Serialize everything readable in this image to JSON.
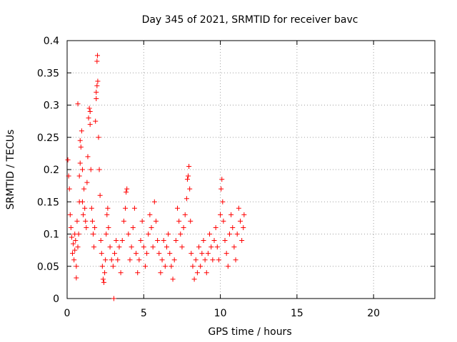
{
  "chart_data": {
    "type": "scatter",
    "title": "Day 345 of 2021, SRMTID for receiver bavc",
    "xlabel": "GPS time / hours",
    "ylabel": "SRMTID / TECUs",
    "xlim": [
      0,
      24
    ],
    "ylim": [
      0,
      0.4
    ],
    "xticks": [
      0,
      5,
      10,
      15,
      20
    ],
    "yticks": [
      0,
      0.05,
      0.1,
      0.15,
      0.2,
      0.25,
      0.3,
      0.35,
      0.4
    ],
    "xtick_labels": [
      "0",
      "5",
      "10",
      "15",
      "20"
    ],
    "ytick_labels": [
      "0",
      "0.05",
      "0.1",
      "0.15",
      "0.2",
      "0.25",
      "0.3",
      "0.35",
      "0.4"
    ],
    "grid": true,
    "marker": "+",
    "color": "#ff0000",
    "series": [
      {
        "name": "SRMTID",
        "points": [
          [
            0.05,
            0.215
          ],
          [
            0.1,
            0.19
          ],
          [
            0.15,
            0.17
          ],
          [
            0.2,
            0.13
          ],
          [
            0.25,
            0.11
          ],
          [
            0.3,
            0.095
          ],
          [
            0.35,
            0.07
          ],
          [
            0.4,
            0.085
          ],
          [
            0.45,
            0.06
          ],
          [
            0.5,
            0.075
          ],
          [
            0.5,
            0.1
          ],
          [
            0.55,
            0.09
          ],
          [
            0.6,
            0.05
          ],
          [
            0.6,
            0.032
          ],
          [
            0.65,
            0.12
          ],
          [
            0.7,
            0.08
          ],
          [
            0.75,
            0.1
          ],
          [
            0.8,
            0.15
          ],
          [
            0.8,
            0.19
          ],
          [
            0.85,
            0.21
          ],
          [
            0.7,
            0.302
          ],
          [
            0.85,
            0.245
          ],
          [
            0.9,
            0.235
          ],
          [
            0.95,
            0.26
          ],
          [
            1.0,
            0.2
          ],
          [
            1.0,
            0.15
          ],
          [
            1.05,
            0.13
          ],
          [
            1.1,
            0.17
          ],
          [
            1.15,
            0.14
          ],
          [
            1.2,
            0.12
          ],
          [
            1.25,
            0.11
          ],
          [
            1.3,
            0.18
          ],
          [
            1.35,
            0.22
          ],
          [
            1.4,
            0.28
          ],
          [
            1.45,
            0.295
          ],
          [
            1.5,
            0.29
          ],
          [
            1.5,
            0.27
          ],
          [
            1.55,
            0.2
          ],
          [
            1.6,
            0.14
          ],
          [
            1.65,
            0.12
          ],
          [
            1.7,
            0.1
          ],
          [
            1.75,
            0.08
          ],
          [
            1.8,
            0.11
          ],
          [
            1.85,
            0.275
          ],
          [
            1.9,
            0.31
          ],
          [
            1.95,
            0.33
          ],
          [
            1.9,
            0.32
          ],
          [
            1.95,
            0.368
          ],
          [
            1.98,
            0.377
          ],
          [
            2.0,
            0.337
          ],
          [
            2.05,
            0.25
          ],
          [
            2.1,
            0.2
          ],
          [
            2.15,
            0.16
          ],
          [
            2.2,
            0.09
          ],
          [
            2.25,
            0.07
          ],
          [
            2.3,
            0.05
          ],
          [
            2.35,
            0.03
          ],
          [
            2.4,
            0.025
          ],
          [
            2.45,
            0.04
          ],
          [
            2.5,
            0.06
          ],
          [
            2.55,
            0.1
          ],
          [
            2.6,
            0.13
          ],
          [
            2.65,
            0.14
          ],
          [
            2.7,
            0.11
          ],
          [
            2.8,
            0.08
          ],
          [
            2.9,
            0.06
          ],
          [
            3.0,
            0.05
          ],
          [
            3.05,
            0.0
          ],
          [
            3.1,
            0.07
          ],
          [
            3.2,
            0.09
          ],
          [
            3.3,
            0.06
          ],
          [
            3.4,
            0.08
          ],
          [
            3.5,
            0.04
          ],
          [
            3.6,
            0.09
          ],
          [
            3.7,
            0.12
          ],
          [
            3.8,
            0.14
          ],
          [
            3.85,
            0.165
          ],
          [
            3.9,
            0.17
          ],
          [
            4.0,
            0.1
          ],
          [
            4.1,
            0.06
          ],
          [
            4.2,
            0.08
          ],
          [
            4.3,
            0.11
          ],
          [
            4.4,
            0.14
          ],
          [
            4.5,
            0.07
          ],
          [
            4.6,
            0.04
          ],
          [
            4.7,
            0.06
          ],
          [
            4.8,
            0.09
          ],
          [
            4.9,
            0.12
          ],
          [
            5.0,
            0.08
          ],
          [
            5.1,
            0.05
          ],
          [
            5.2,
            0.07
          ],
          [
            5.3,
            0.1
          ],
          [
            5.4,
            0.13
          ],
          [
            5.5,
            0.11
          ],
          [
            5.6,
            0.08
          ],
          [
            5.7,
            0.15
          ],
          [
            5.8,
            0.12
          ],
          [
            5.9,
            0.09
          ],
          [
            6.0,
            0.07
          ],
          [
            6.1,
            0.04
          ],
          [
            6.2,
            0.06
          ],
          [
            6.3,
            0.09
          ],
          [
            6.4,
            0.05
          ],
          [
            6.5,
            0.08
          ],
          [
            6.6,
            0.1
          ],
          [
            6.7,
            0.07
          ],
          [
            6.8,
            0.05
          ],
          [
            6.9,
            0.03
          ],
          [
            7.0,
            0.06
          ],
          [
            7.1,
            0.09
          ],
          [
            7.2,
            0.14
          ],
          [
            7.3,
            0.12
          ],
          [
            7.4,
            0.1
          ],
          [
            7.5,
            0.08
          ],
          [
            7.6,
            0.11
          ],
          [
            7.7,
            0.13
          ],
          [
            7.8,
            0.155
          ],
          [
            7.85,
            0.185
          ],
          [
            7.9,
            0.19
          ],
          [
            7.95,
            0.205
          ],
          [
            8.0,
            0.17
          ],
          [
            8.05,
            0.12
          ],
          [
            8.1,
            0.07
          ],
          [
            8.2,
            0.05
          ],
          [
            8.3,
            0.03
          ],
          [
            8.4,
            0.06
          ],
          [
            8.5,
            0.04
          ],
          [
            8.6,
            0.08
          ],
          [
            8.7,
            0.05
          ],
          [
            8.8,
            0.07
          ],
          [
            8.9,
            0.09
          ],
          [
            9.0,
            0.06
          ],
          [
            9.1,
            0.04
          ],
          [
            9.2,
            0.07
          ],
          [
            9.3,
            0.1
          ],
          [
            9.4,
            0.08
          ],
          [
            9.5,
            0.06
          ],
          [
            9.6,
            0.09
          ],
          [
            9.7,
            0.11
          ],
          [
            9.8,
            0.08
          ],
          [
            9.9,
            0.06
          ],
          [
            10.0,
            0.13
          ],
          [
            10.05,
            0.17
          ],
          [
            10.1,
            0.185
          ],
          [
            10.15,
            0.15
          ],
          [
            10.2,
            0.12
          ],
          [
            10.3,
            0.09
          ],
          [
            10.4,
            0.07
          ],
          [
            10.5,
            0.05
          ],
          [
            10.6,
            0.1
          ],
          [
            10.7,
            0.13
          ],
          [
            10.8,
            0.11
          ],
          [
            10.9,
            0.08
          ],
          [
            11.0,
            0.06
          ],
          [
            11.1,
            0.1
          ],
          [
            11.2,
            0.14
          ],
          [
            11.3,
            0.12
          ],
          [
            11.4,
            0.09
          ],
          [
            11.5,
            0.11
          ],
          [
            11.55,
            0.13
          ]
        ]
      }
    ]
  }
}
